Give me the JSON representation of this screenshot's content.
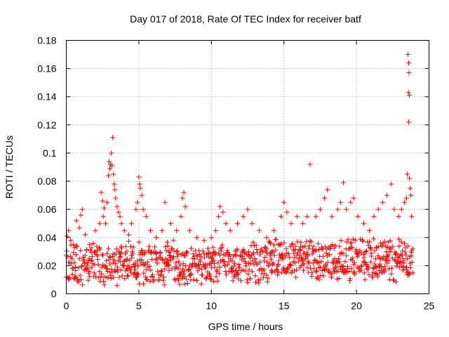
{
  "chart_data": {
    "type": "scatter",
    "title": "Day 017 of 2018, Rate Of TEC Index for receiver batf",
    "xlabel": "GPS time / hours",
    "ylabel": "ROTI / TECUs",
    "xlim": [
      0,
      25
    ],
    "ylim": [
      0,
      0.18
    ],
    "x_ticks": [
      0,
      5,
      10,
      15,
      20,
      25
    ],
    "y_ticks": [
      0,
      0.02,
      0.04,
      0.06,
      0.08,
      0.1,
      0.12,
      0.14,
      0.16,
      0.18
    ],
    "x_tick_labels": [
      "0",
      "5",
      "10",
      "15",
      "20",
      "25"
    ],
    "y_tick_labels": [
      "0",
      "0.02",
      "0.04",
      "0.06",
      "0.08",
      "0.1",
      "0.12",
      "0.14",
      "0.16",
      "0.18"
    ],
    "grid": true,
    "marker": "+",
    "color": "#ff0000",
    "series": [
      {
        "name": "ROTI",
        "points": [
          [
            0.05,
            0.041
          ],
          [
            0.15,
            0.045
          ],
          [
            0.3,
            0.038
          ],
          [
            0.5,
            0.035
          ],
          [
            0.7,
            0.052
          ],
          [
            0.9,
            0.047
          ],
          [
            1.0,
            0.056
          ],
          [
            1.1,
            0.06
          ],
          [
            1.3,
            0.042
          ],
          [
            1.6,
            0.035
          ],
          [
            2.0,
            0.045
          ],
          [
            2.3,
            0.05
          ],
          [
            2.4,
            0.072
          ],
          [
            2.5,
            0.066
          ],
          [
            2.55,
            0.055
          ],
          [
            2.6,
            0.061
          ],
          [
            2.7,
            0.05
          ],
          [
            2.8,
            0.065
          ],
          [
            2.9,
            0.084
          ],
          [
            2.95,
            0.094
          ],
          [
            3.0,
            0.089
          ],
          [
            3.05,
            0.092
          ],
          [
            3.1,
            0.1
          ],
          [
            3.15,
            0.091
          ],
          [
            3.2,
            0.111
          ],
          [
            3.25,
            0.085
          ],
          [
            3.3,
            0.078
          ],
          [
            3.35,
            0.074
          ],
          [
            3.4,
            0.068
          ],
          [
            3.5,
            0.062
          ],
          [
            3.6,
            0.058
          ],
          [
            3.7,
            0.055
          ],
          [
            3.8,
            0.05
          ],
          [
            4.0,
            0.045
          ],
          [
            4.3,
            0.042
          ],
          [
            4.5,
            0.05
          ],
          [
            4.8,
            0.06
          ],
          [
            4.9,
            0.065
          ],
          [
            5.0,
            0.083
          ],
          [
            5.05,
            0.078
          ],
          [
            5.1,
            0.075
          ],
          [
            5.2,
            0.07
          ],
          [
            5.3,
            0.06
          ],
          [
            5.5,
            0.055
          ],
          [
            5.8,
            0.045
          ],
          [
            6.2,
            0.04
          ],
          [
            6.6,
            0.045
          ],
          [
            6.8,
            0.065
          ],
          [
            7.2,
            0.05
          ],
          [
            7.6,
            0.045
          ],
          [
            7.9,
            0.055
          ],
          [
            8.0,
            0.068
          ],
          [
            8.1,
            0.072
          ],
          [
            8.2,
            0.062
          ],
          [
            8.5,
            0.045
          ],
          [
            9.0,
            0.04
          ],
          [
            9.5,
            0.038
          ],
          [
            10.0,
            0.04
          ],
          [
            10.3,
            0.045
          ],
          [
            10.5,
            0.055
          ],
          [
            10.6,
            0.062
          ],
          [
            10.8,
            0.058
          ],
          [
            11.0,
            0.05
          ],
          [
            11.3,
            0.045
          ],
          [
            11.8,
            0.05
          ],
          [
            12.2,
            0.055
          ],
          [
            12.5,
            0.06
          ],
          [
            12.8,
            0.05
          ],
          [
            13.3,
            0.045
          ],
          [
            13.8,
            0.04
          ],
          [
            14.3,
            0.045
          ],
          [
            14.8,
            0.055
          ],
          [
            15.0,
            0.065
          ],
          [
            15.2,
            0.058
          ],
          [
            15.5,
            0.05
          ],
          [
            15.9,
            0.055
          ],
          [
            16.3,
            0.05
          ],
          [
            16.6,
            0.055
          ],
          [
            16.8,
            0.092
          ],
          [
            17.2,
            0.055
          ],
          [
            17.5,
            0.06
          ],
          [
            17.8,
            0.068
          ],
          [
            18.0,
            0.074
          ],
          [
            18.3,
            0.055
          ],
          [
            18.7,
            0.06
          ],
          [
            18.9,
            0.065
          ],
          [
            19.1,
            0.079
          ],
          [
            19.3,
            0.06
          ],
          [
            19.6,
            0.065
          ],
          [
            19.8,
            0.068
          ],
          [
            20.1,
            0.055
          ],
          [
            20.5,
            0.05
          ],
          [
            20.9,
            0.045
          ],
          [
            21.2,
            0.055
          ],
          [
            21.5,
            0.06
          ],
          [
            21.8,
            0.065
          ],
          [
            22.1,
            0.07
          ],
          [
            22.4,
            0.078
          ],
          [
            22.6,
            0.06
          ],
          [
            22.9,
            0.055
          ],
          [
            23.1,
            0.06
          ],
          [
            23.3,
            0.065
          ],
          [
            23.45,
            0.068
          ],
          [
            23.5,
            0.085
          ],
          [
            23.55,
            0.17
          ],
          [
            23.6,
            0.164
          ],
          [
            23.62,
            0.157
          ],
          [
            23.65,
            0.141
          ],
          [
            23.58,
            0.143
          ],
          [
            23.6,
            0.122
          ],
          [
            23.65,
            0.082
          ],
          [
            23.7,
            0.075
          ],
          [
            23.75,
            0.07
          ],
          [
            23.8,
            0.055
          ]
        ],
        "baseline": {
          "x_start": 0,
          "x_end": 23.9,
          "x_step": 0.035,
          "typical_min": 0.006,
          "typical_max": 0.04,
          "typical_center": 0.021
        }
      }
    ]
  }
}
